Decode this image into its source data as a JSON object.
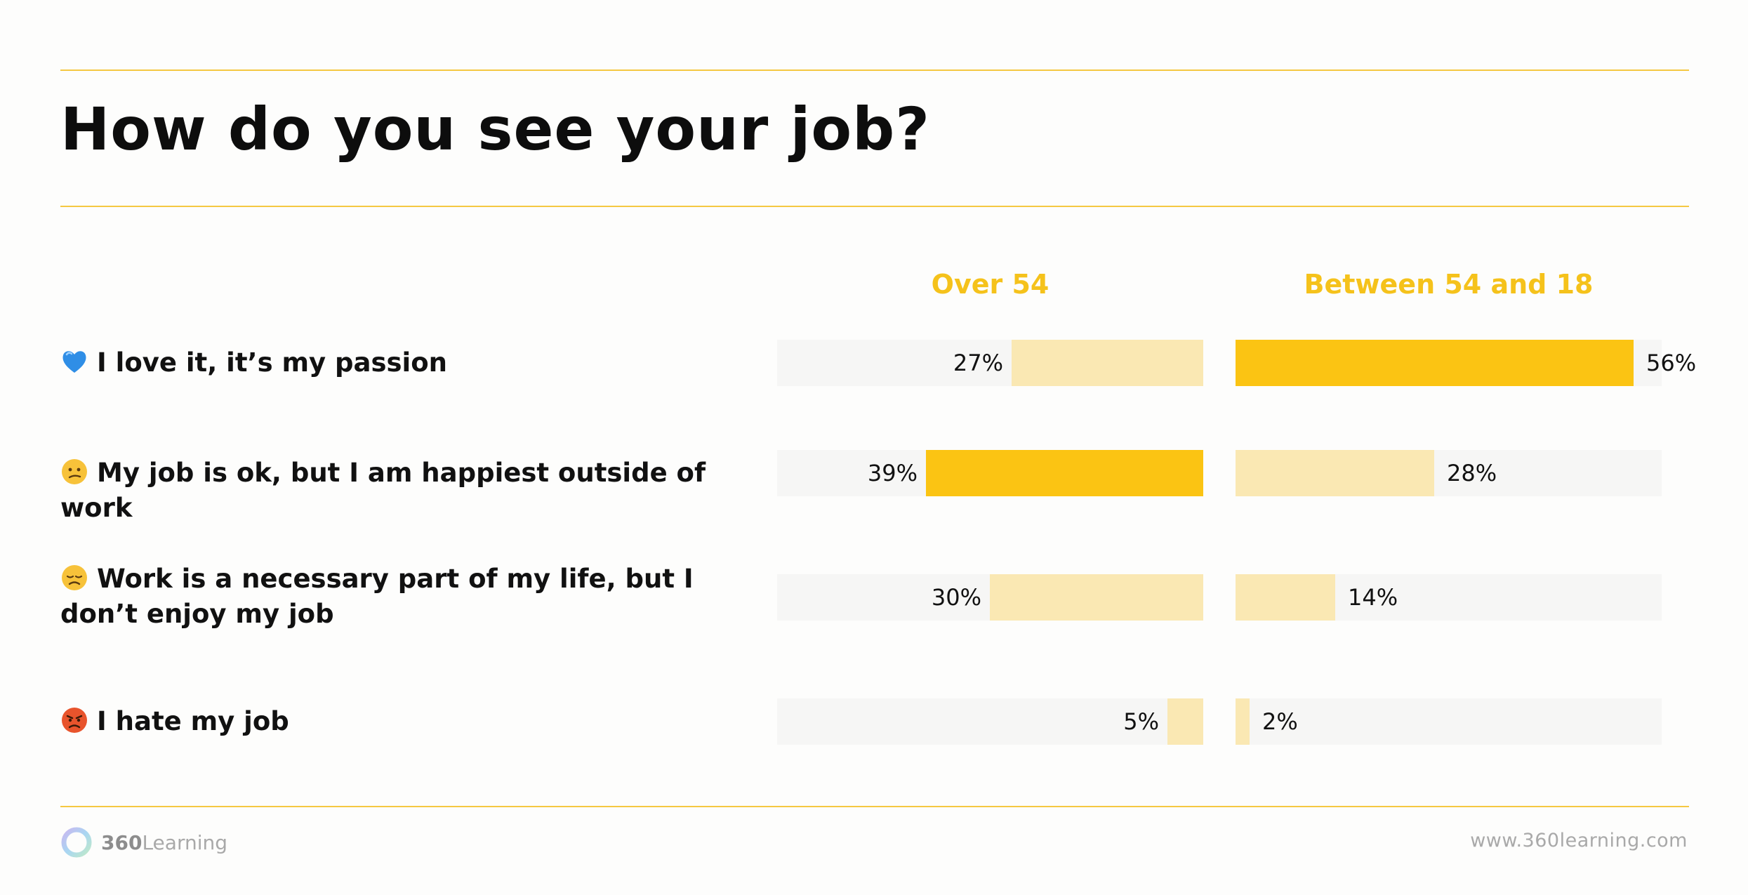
{
  "title": "How do you see your job?",
  "colors": {
    "accent": "#fbc413",
    "accent_pale": "#fae8b3",
    "track": "#f6f6f5",
    "rule": "#f5c842",
    "header_text": "#f5c21b"
  },
  "chart_data": {
    "type": "bar",
    "orientation": "horizontal",
    "categories": [
      "I love it, it’s my passion",
      "My job is ok, but I am happiest outside of work",
      "Work is a necessary part of my life, but I don’t enjoy my job",
      "I hate my job"
    ],
    "category_icons": [
      "blue-heart-emoji",
      "confused-face-emoji",
      "disappointed-face-emoji",
      "angry-face-emoji"
    ],
    "series": [
      {
        "name": "Over 54",
        "values": [
          27,
          39,
          30,
          5
        ],
        "value_labels": [
          "27%",
          "39%",
          "30%",
          "5%"
        ],
        "direction": "right-to-left",
        "highlight_index": 1
      },
      {
        "name": "Between 54 and 18",
        "values": [
          56,
          28,
          14,
          2
        ],
        "value_labels": [
          "56%",
          "28%",
          "14%",
          "2%"
        ],
        "direction": "left-to-right",
        "highlight_index": 0
      }
    ],
    "unit": "%",
    "xlim": [
      0,
      60
    ],
    "grid": false,
    "legend": "column headers above bars"
  },
  "footer": {
    "brand_bold": "360",
    "brand_rest": "Learning",
    "url": "www.360learning.com"
  }
}
